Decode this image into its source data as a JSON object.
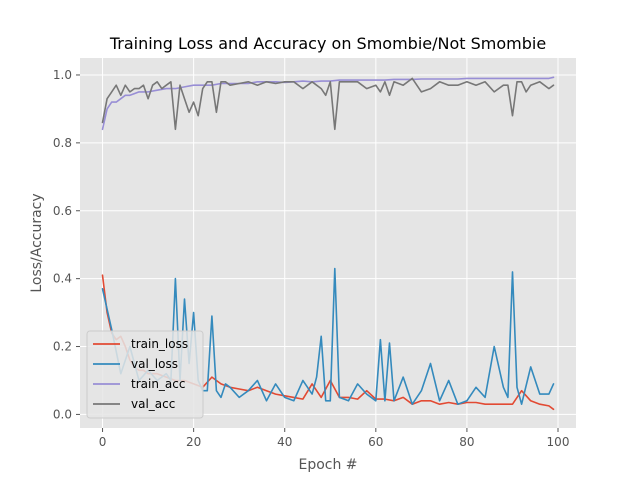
{
  "chart_data": {
    "type": "line",
    "title": "Training Loss and Accuracy on Smombie/Not Smombie",
    "xlabel": "Epoch #",
    "ylabel": "Loss/Accuracy",
    "xlim": [
      -4.95,
      103.95
    ],
    "ylim": [
      -0.04,
      1.05
    ],
    "xticks": [
      0,
      20,
      40,
      60,
      80,
      100
    ],
    "yticks": [
      0.0,
      0.2,
      0.4,
      0.6,
      0.8,
      1.0
    ],
    "xtick_labels": [
      "0",
      "20",
      "40",
      "60",
      "80",
      "100"
    ],
    "ytick_labels": [
      "0.0",
      "0.2",
      "0.4",
      "0.6",
      "0.8",
      "1.0"
    ],
    "grid": true,
    "legend_position": "lower-left",
    "style": "ggplot",
    "series": [
      {
        "name": "train_loss",
        "color": "#E24A33",
        "x": [
          0,
          1,
          2,
          3,
          4,
          5,
          6,
          7,
          8,
          9,
          10,
          12,
          14,
          16,
          18,
          20,
          22,
          24,
          26,
          28,
          30,
          32,
          34,
          36,
          38,
          40,
          42,
          44,
          46,
          48,
          50,
          52,
          54,
          56,
          58,
          60,
          62,
          64,
          66,
          68,
          70,
          72,
          74,
          76,
          78,
          80,
          82,
          84,
          86,
          88,
          90,
          92,
          94,
          96,
          98,
          99
        ],
        "values": [
          0.41,
          0.3,
          0.24,
          0.22,
          0.23,
          0.2,
          0.16,
          0.14,
          0.13,
          0.13,
          0.12,
          0.12,
          0.11,
          0.1,
          0.1,
          0.09,
          0.08,
          0.11,
          0.09,
          0.08,
          0.075,
          0.07,
          0.08,
          0.07,
          0.06,
          0.055,
          0.05,
          0.045,
          0.09,
          0.05,
          0.1,
          0.05,
          0.05,
          0.045,
          0.07,
          0.045,
          0.045,
          0.04,
          0.05,
          0.03,
          0.04,
          0.04,
          0.03,
          0.035,
          0.03,
          0.035,
          0.035,
          0.03,
          0.03,
          0.03,
          0.03,
          0.07,
          0.04,
          0.03,
          0.025,
          0.015
        ]
      },
      {
        "name": "val_loss",
        "color": "#348ABD",
        "x": [
          0,
          2,
          4,
          6,
          8,
          10,
          12,
          14,
          15,
          16,
          17,
          18,
          19,
          20,
          21,
          22,
          23,
          24,
          25,
          26,
          27,
          28,
          30,
          32,
          34,
          36,
          38,
          40,
          42,
          44,
          46,
          47,
          48,
          49,
          50,
          51,
          52,
          54,
          56,
          58,
          60,
          61,
          62,
          63,
          64,
          66,
          68,
          70,
          72,
          74,
          76,
          78,
          80,
          82,
          84,
          86,
          88,
          89,
          90,
          91,
          92,
          94,
          96,
          98,
          99
        ],
        "values": [
          0.37,
          0.25,
          0.12,
          0.2,
          0.1,
          0.13,
          0.1,
          0.12,
          0.1,
          0.4,
          0.1,
          0.34,
          0.15,
          0.3,
          0.1,
          0.07,
          0.07,
          0.29,
          0.07,
          0.05,
          0.09,
          0.08,
          0.05,
          0.07,
          0.1,
          0.04,
          0.09,
          0.05,
          0.04,
          0.1,
          0.06,
          0.11,
          0.23,
          0.04,
          0.04,
          0.43,
          0.05,
          0.04,
          0.09,
          0.06,
          0.04,
          0.22,
          0.04,
          0.21,
          0.04,
          0.11,
          0.03,
          0.07,
          0.15,
          0.04,
          0.1,
          0.03,
          0.04,
          0.08,
          0.05,
          0.2,
          0.08,
          0.05,
          0.42,
          0.08,
          0.03,
          0.14,
          0.06,
          0.06,
          0.09
        ]
      },
      {
        "name": "train_acc",
        "color": "#988ED5",
        "x": [
          0,
          1,
          2,
          3,
          4,
          5,
          6,
          7,
          8,
          9,
          10,
          12,
          14,
          16,
          18,
          20,
          22,
          24,
          26,
          28,
          30,
          32,
          34,
          36,
          38,
          40,
          42,
          44,
          46,
          48,
          50,
          52,
          54,
          56,
          58,
          60,
          62,
          64,
          66,
          68,
          70,
          72,
          74,
          76,
          78,
          80,
          82,
          84,
          86,
          88,
          90,
          92,
          94,
          96,
          98,
          99
        ],
        "values": [
          0.84,
          0.9,
          0.92,
          0.92,
          0.93,
          0.94,
          0.94,
          0.945,
          0.95,
          0.95,
          0.95,
          0.955,
          0.96,
          0.96,
          0.965,
          0.97,
          0.97,
          0.97,
          0.975,
          0.975,
          0.975,
          0.975,
          0.98,
          0.98,
          0.98,
          0.978,
          0.98,
          0.982,
          0.98,
          0.982,
          0.982,
          0.985,
          0.985,
          0.985,
          0.985,
          0.985,
          0.985,
          0.987,
          0.987,
          0.987,
          0.988,
          0.988,
          0.988,
          0.988,
          0.988,
          0.99,
          0.99,
          0.99,
          0.99,
          0.99,
          0.99,
          0.99,
          0.99,
          0.99,
          0.99,
          0.993
        ]
      },
      {
        "name": "val_acc",
        "color": "#777777",
        "x": [
          0,
          1,
          2,
          3,
          4,
          5,
          6,
          7,
          8,
          9,
          10,
          11,
          12,
          13,
          14,
          15,
          16,
          17,
          18,
          19,
          20,
          21,
          22,
          23,
          24,
          25,
          26,
          27,
          28,
          30,
          32,
          34,
          36,
          38,
          40,
          42,
          44,
          46,
          48,
          49,
          50,
          51,
          52,
          54,
          56,
          58,
          60,
          61,
          62,
          63,
          64,
          66,
          68,
          70,
          72,
          74,
          76,
          78,
          80,
          82,
          84,
          86,
          88,
          89,
          90,
          91,
          92,
          93,
          94,
          96,
          98,
          99
        ],
        "values": [
          0.86,
          0.93,
          0.95,
          0.97,
          0.94,
          0.97,
          0.95,
          0.96,
          0.96,
          0.97,
          0.93,
          0.97,
          0.98,
          0.96,
          0.97,
          0.98,
          0.84,
          0.97,
          0.93,
          0.89,
          0.92,
          0.88,
          0.96,
          0.98,
          0.98,
          0.89,
          0.98,
          0.98,
          0.97,
          0.975,
          0.98,
          0.97,
          0.98,
          0.975,
          0.98,
          0.98,
          0.96,
          0.98,
          0.96,
          0.94,
          0.98,
          0.84,
          0.98,
          0.98,
          0.98,
          0.96,
          0.97,
          0.95,
          0.98,
          0.94,
          0.98,
          0.97,
          0.99,
          0.95,
          0.96,
          0.98,
          0.97,
          0.97,
          0.98,
          0.97,
          0.98,
          0.95,
          0.97,
          0.97,
          0.88,
          0.98,
          0.98,
          0.95,
          0.97,
          0.98,
          0.96,
          0.97
        ]
      }
    ]
  }
}
